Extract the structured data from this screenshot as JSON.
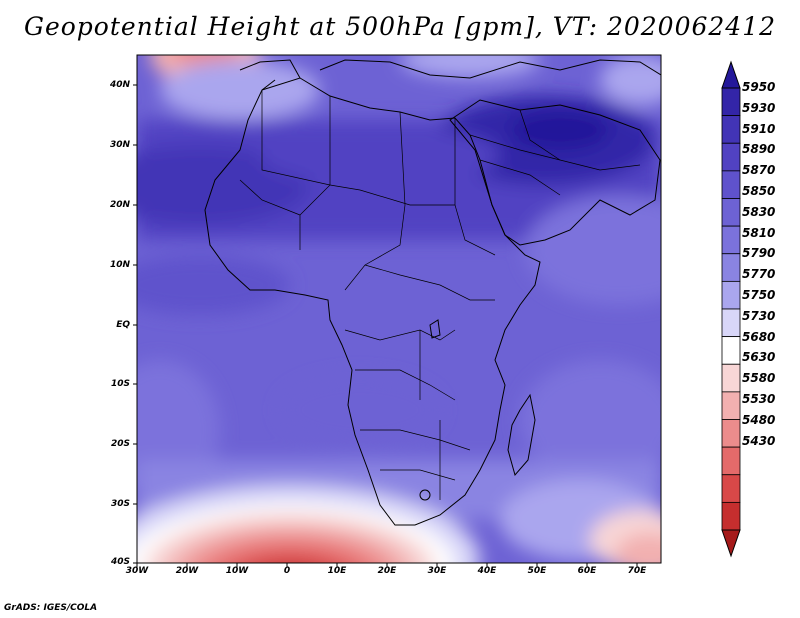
{
  "title": "Geopotential Height at 500hPa [gpm], VT: 2020062412",
  "footer": "GrADS: IGES/COLA",
  "map": {
    "region": "Africa",
    "lon_range": [
      -30,
      75
    ],
    "lat_range": [
      -40,
      45
    ]
  },
  "axes": {
    "y_ticks": [
      "40N",
      "30N",
      "20N",
      "10N",
      "EQ",
      "10S",
      "20S",
      "30S",
      "40S"
    ],
    "x_ticks": [
      "30W",
      "20W",
      "10W",
      "0",
      "10E",
      "20E",
      "30E",
      "40E",
      "50E",
      "60E",
      "70E"
    ]
  },
  "colorbar": {
    "levels": [
      "5950",
      "5930",
      "5910",
      "5890",
      "5870",
      "5850",
      "5830",
      "5810",
      "5790",
      "5770",
      "5750",
      "5730",
      "5680",
      "5630",
      "5580",
      "5530",
      "5480",
      "5430"
    ],
    "colors": [
      "#24189a",
      "#3325a8",
      "#4234b6",
      "#5142c2",
      "#5f52cc",
      "#6d62d4",
      "#7b72dc",
      "#8a84e2",
      "#aaa6ee",
      "#d8d6f8",
      "#ffffff",
      "#f8d6d6",
      "#f2b0b0",
      "#ec8c8c",
      "#e46a6a",
      "#d84848",
      "#c52e2e",
      "#a51a1a"
    ]
  }
}
